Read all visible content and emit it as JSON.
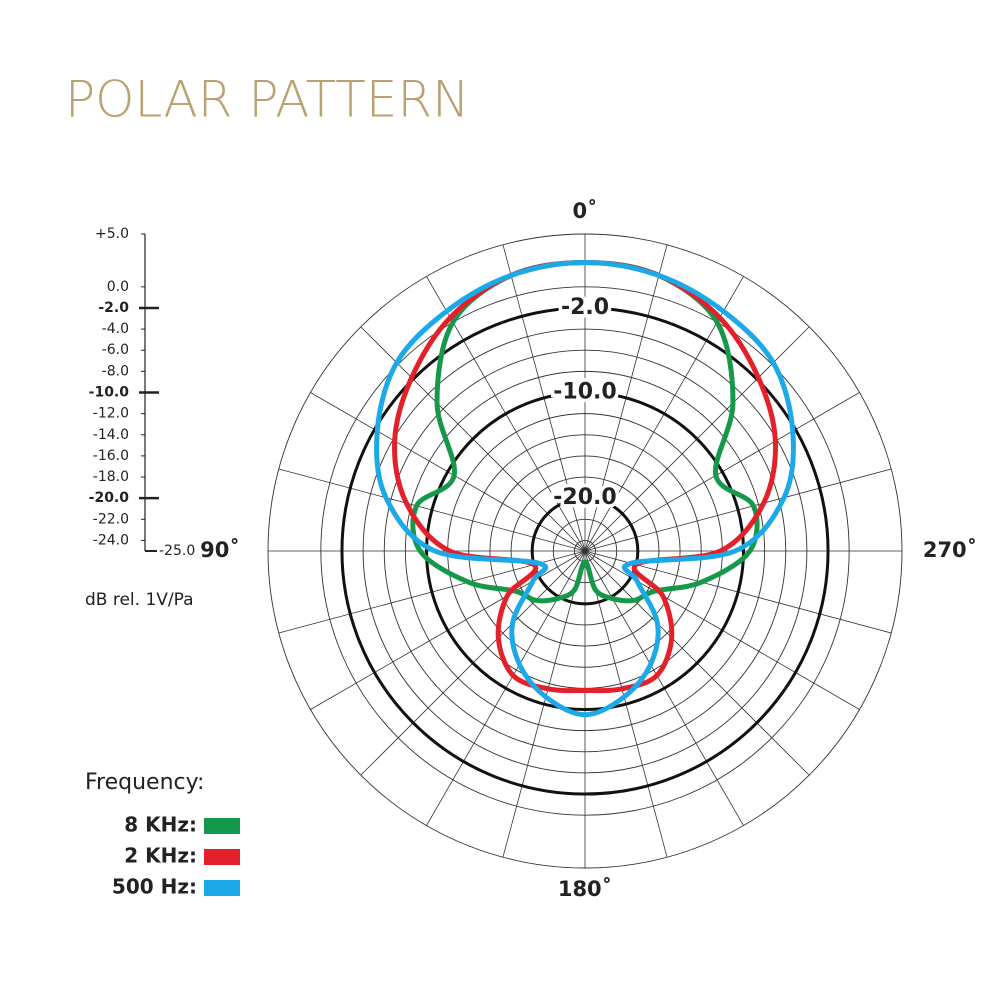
{
  "chart_data": {
    "type": "polar",
    "title": "POLAR PATTERN",
    "r_axis_label": "dB rel. 1V/Pa",
    "legend_title": "Frequency:",
    "x": [
      0,
      15,
      30,
      45,
      60,
      75,
      90,
      105,
      120,
      135,
      150,
      165,
      180,
      195,
      210,
      225,
      240,
      255,
      270,
      285,
      300,
      315,
      330,
      345
    ],
    "xticks": [
      {
        "value": 0,
        "label": "0˚"
      },
      {
        "value": 90,
        "label": "90˚"
      },
      {
        "value": 180,
        "label": "180˚"
      },
      {
        "value": 270,
        "label": "270˚"
      }
    ],
    "rlim": [
      -25,
      5
    ],
    "rticks": [
      {
        "value": 5,
        "label": "+5.0"
      },
      {
        "value": 0,
        "label": "0.0"
      },
      {
        "value": -2,
        "label": "-2.0"
      },
      {
        "value": -4,
        "label": "-4.0"
      },
      {
        "value": -6,
        "label": "-6.0"
      },
      {
        "value": -8,
        "label": "-8.0"
      },
      {
        "value": -10,
        "label": "-10.0"
      },
      {
        "value": -12,
        "label": "-12.0"
      },
      {
        "value": -14,
        "label": "-14.0"
      },
      {
        "value": -16,
        "label": "-16.0"
      },
      {
        "value": -18,
        "label": "-18.0"
      },
      {
        "value": -20,
        "label": "-20.0"
      },
      {
        "value": -22,
        "label": "-22.0"
      },
      {
        "value": -24,
        "label": "-24.0"
      },
      {
        "value": -25,
        "label": "-25.0"
      }
    ],
    "ring_labels": [
      {
        "value": -2,
        "label": "-2.0"
      },
      {
        "value": -10,
        "label": "-10.0"
      },
      {
        "value": -20,
        "label": "-20.0"
      }
    ],
    "series": [
      {
        "name": "8 KHz:",
        "color": "#16984a",
        "values": [
          2.3,
          2.0,
          0,
          -5.2,
          -10.7,
          -8.5,
          -9.4,
          -13.6,
          -17.4,
          -18.4,
          -19.8,
          -21.2,
          -24,
          -21.2,
          -19.8,
          -18.4,
          -17.4,
          -13.6,
          -9.4,
          -8.5,
          -10.7,
          -5.2,
          0,
          2.0
        ]
      },
      {
        "name": "2 KHz:",
        "color": "#e4202b",
        "values": [
          2.3,
          2.0,
          0.5,
          -1.8,
          -4.2,
          -7.5,
          -12.2,
          -20,
          -16.5,
          -13.4,
          -11.4,
          -11.5,
          -11.8,
          -11.5,
          -11.4,
          -13.4,
          -16.5,
          -20,
          -12.2,
          -7.5,
          -4.2,
          -1.8,
          0.5,
          2.0
        ]
      },
      {
        "name": "500 Hz:",
        "color": "#1ba9e8",
        "values": [
          2.3,
          2.0,
          1.2,
          0.2,
          -2.3,
          -5.5,
          -10.8,
          -20.5,
          -19.3,
          -15.3,
          -12.6,
          -10.7,
          -9.5,
          -10.7,
          -12.6,
          -15.3,
          -19.3,
          -20.5,
          -10.8,
          -5.5,
          -2.3,
          0.2,
          1.2,
          2.0
        ]
      }
    ]
  }
}
